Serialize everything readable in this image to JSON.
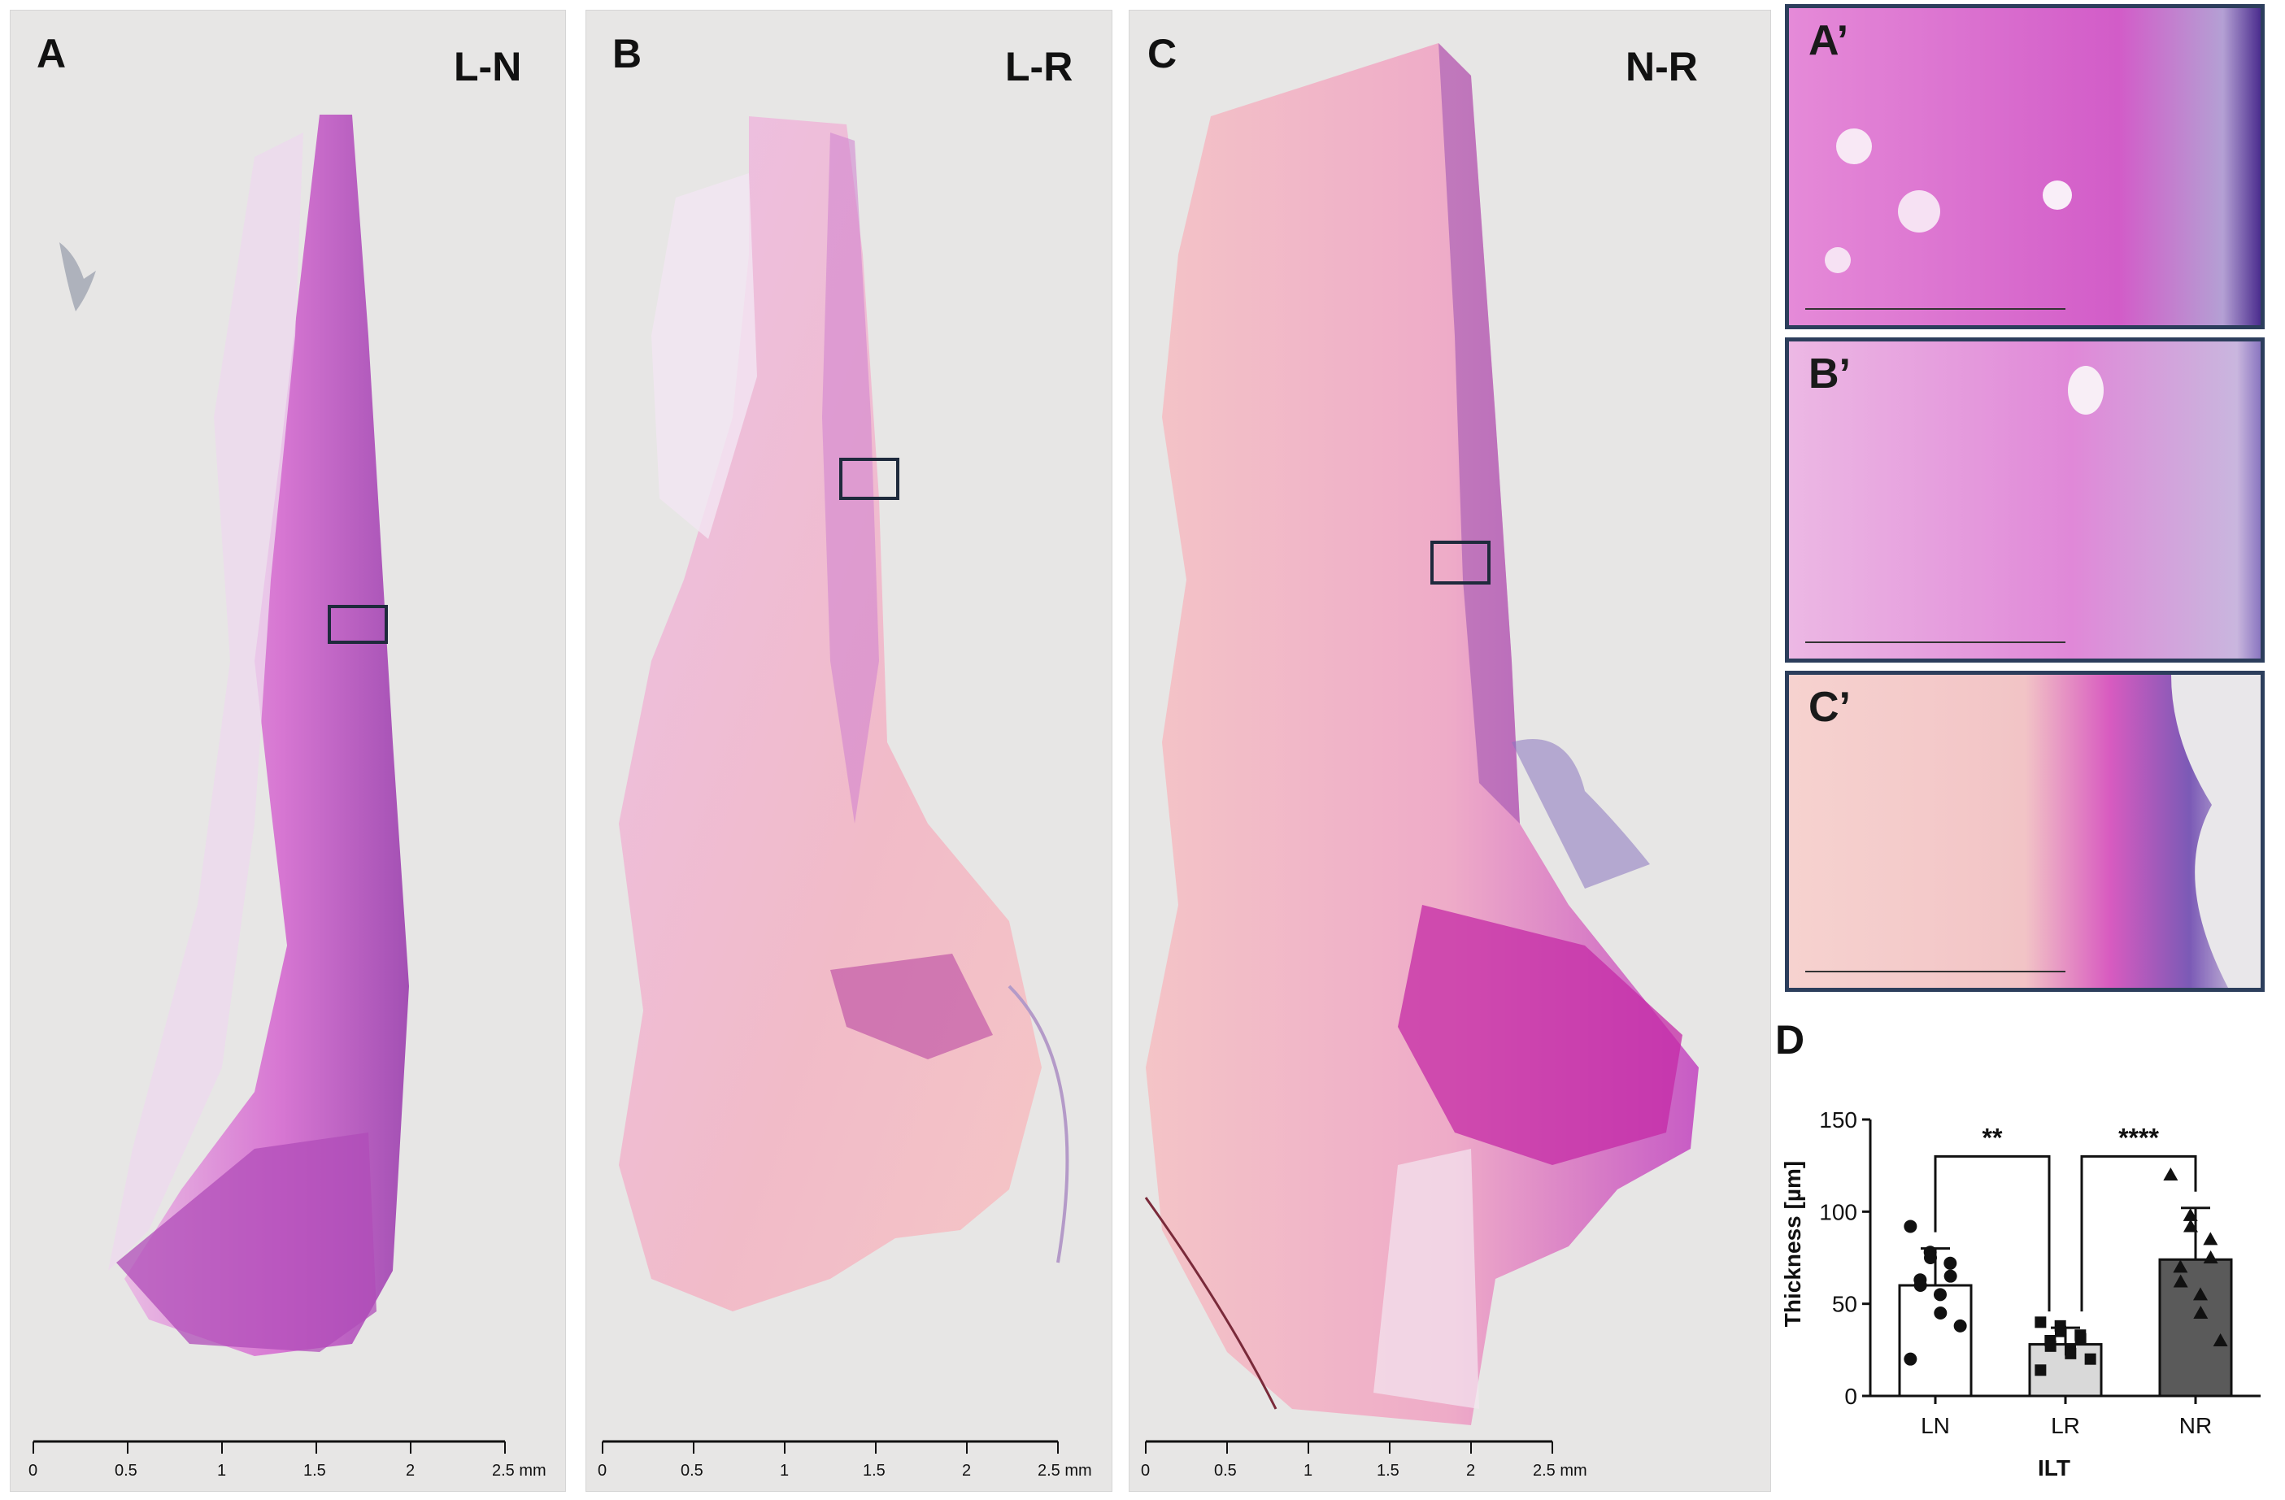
{
  "panels": [
    {
      "id": "A",
      "letter": "A",
      "region": "L-N",
      "scale_ticks": [
        "0",
        "0.5",
        "1",
        "1.5",
        "2",
        "2.5 mm"
      ]
    },
    {
      "id": "B",
      "letter": "B",
      "region": "L-R",
      "scale_ticks": [
        "0",
        "0.5",
        "1",
        "1.5",
        "2",
        "2.5 mm"
      ]
    },
    {
      "id": "C",
      "letter": "C",
      "region": "N-R",
      "scale_ticks": [
        "0",
        "0.5",
        "1",
        "1.5",
        "2",
        "2.5 mm"
      ]
    }
  ],
  "insets": [
    {
      "id": "A-prime",
      "label": "A’"
    },
    {
      "id": "B-prime",
      "label": "B’"
    },
    {
      "id": "C-prime",
      "label": "C’"
    }
  ],
  "chart_panel_letter": "D",
  "chart_data": {
    "type": "bar",
    "categories": [
      "LN",
      "LR",
      "NR"
    ],
    "xlabel": "ILT",
    "ylabel": "Thickness [µm]",
    "ylim": [
      0,
      150
    ],
    "yticks": [
      "0",
      "50",
      "100",
      "150"
    ],
    "values": [
      60,
      28,
      74
    ],
    "errors": [
      20,
      9,
      28
    ],
    "bar_colors": [
      "#ffffff",
      "#d9d9d9",
      "#5a5a5a"
    ],
    "points": {
      "LN": [
        92,
        78,
        75,
        72,
        65,
        63,
        60,
        55,
        45,
        38,
        20
      ],
      "LR": [
        40,
        38,
        35,
        33,
        31,
        30,
        27,
        25,
        23,
        20,
        14
      ],
      "NR": [
        120,
        98,
        92,
        85,
        75,
        70,
        62,
        55,
        45,
        30
      ]
    },
    "point_markers": [
      "circle",
      "square",
      "triangle"
    ],
    "significance": [
      {
        "pair": [
          "LN",
          "LR"
        ],
        "label": "**"
      },
      {
        "pair": [
          "LR",
          "NR"
        ],
        "label": "****"
      }
    ]
  }
}
